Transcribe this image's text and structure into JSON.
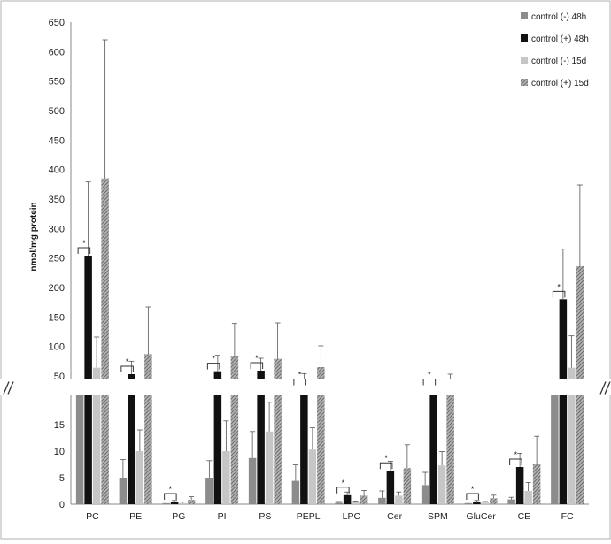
{
  "chart_data": {
    "type": "bar",
    "ylabel": "nmol/mg protein",
    "categories": [
      "PC",
      "PE",
      "PG",
      "PI",
      "PS",
      "PEPL",
      "LPC",
      "Cer",
      "SPM",
      "GluCer",
      "CE",
      "FC"
    ],
    "axis_break": {
      "lower_range": [
        0,
        20
      ],
      "upper_range": [
        50,
        650
      ]
    },
    "lower_ticks": [
      0,
      5,
      10,
      15
    ],
    "upper_ticks": [
      50,
      100,
      150,
      200,
      250,
      300,
      350,
      400,
      450,
      500,
      550,
      600,
      650
    ],
    "legend_position": "top-right",
    "grid": false,
    "series": [
      {
        "name": "control (-) 48h",
        "pattern": "solid-gray",
        "color": "#8c8c8c",
        "values": [
          24,
          5,
          0.2,
          5,
          8.7,
          4.4,
          0.3,
          1.2,
          3.6,
          0.2,
          0.9,
          24
        ],
        "errors": [
          18,
          3.4,
          0.2,
          3.2,
          5,
          3,
          0.2,
          1.3,
          2.4,
          0.2,
          0.4,
          16
        ]
      },
      {
        "name": "control (+) 48h",
        "pattern": "black",
        "color": "#111111",
        "values": [
          254,
          53,
          0.5,
          58,
          59,
          42,
          1.7,
          6.3,
          22,
          0.5,
          7,
          180
        ],
        "errors": [
          125,
          22,
          0.2,
          27,
          21,
          12,
          0.6,
          1.8,
          3,
          0.2,
          2.6,
          85
        ]
      },
      {
        "name": "control (-) 15d",
        "pattern": "light-gray",
        "color": "#c6c6c6",
        "values": [
          64,
          10,
          0.2,
          10,
          13.7,
          10.3,
          0.4,
          1.6,
          7.3,
          0.3,
          2.5,
          64
        ],
        "errors": [
          52,
          4,
          0.2,
          5.7,
          5.5,
          4.1,
          0.2,
          0.7,
          2.6,
          0.2,
          1.6,
          54
        ]
      },
      {
        "name": "control (+) 15d",
        "pattern": "hatched",
        "color": "#9a9a9a",
        "values": [
          385,
          87,
          0.8,
          84,
          79,
          65,
          1.6,
          6.8,
          35,
          1.1,
          7.6,
          236
        ],
        "errors": [
          235,
          80,
          0.6,
          55,
          61,
          36,
          1,
          4.4,
          18,
          0.6,
          5.2,
          138
        ]
      }
    ],
    "significance_categories": [
      "PC",
      "PE",
      "PG",
      "PI",
      "PS",
      "PEPL",
      "LPC",
      "Cer",
      "SPM",
      "GluCer",
      "CE",
      "FC"
    ],
    "significance_label": "*"
  }
}
